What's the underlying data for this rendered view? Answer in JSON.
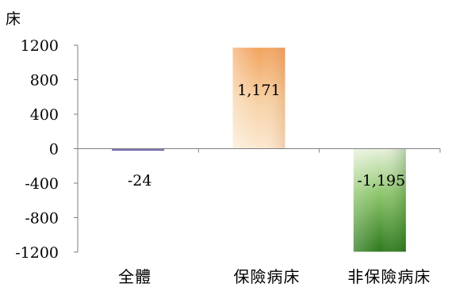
{
  "chart_data": {
    "type": "bar",
    "title": "",
    "xlabel": "",
    "ylabel": "床",
    "ylim": [
      -1200,
      1200
    ],
    "yticks": [
      1200,
      800,
      400,
      0,
      -400,
      -800,
      -1200
    ],
    "categories": [
      "全體",
      "保險病床",
      "非保險病床"
    ],
    "values": [
      -24,
      1171,
      -1195
    ],
    "data_labels": [
      "-24",
      "1,171",
      "-1,195"
    ],
    "bar_colors": [
      "#7b72b8",
      "#f3b07a",
      "#4c9a34"
    ],
    "grid": false,
    "legend": "none"
  }
}
